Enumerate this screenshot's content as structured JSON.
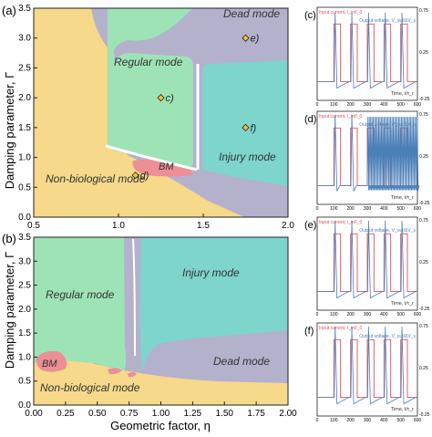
{
  "figure": {
    "panels": {
      "a": {
        "label": "(a)",
        "ylabel": "Damping parameter, Γ",
        "regions": [
          {
            "key": "dead",
            "label": "Dead mode",
            "color": "#b4b1cd"
          },
          {
            "key": "regular",
            "label": "Regular mode",
            "color": "#9ee3b6"
          },
          {
            "key": "injury",
            "label": "Injury mode",
            "color": "#7dd5cc"
          },
          {
            "key": "bm",
            "label": "BM",
            "color": "#ec8f96"
          },
          {
            "key": "nonbio",
            "label": "Non-biological mode",
            "color": "#f6d98a"
          }
        ],
        "points": [
          {
            "label": "e)",
            "eta": 1.75,
            "gamma": 3.0
          },
          {
            "label": "c)",
            "eta": 1.25,
            "gamma": 2.0
          },
          {
            "label": "f)",
            "eta": 1.75,
            "gamma": 1.5
          },
          {
            "label": "d)",
            "eta": 1.1,
            "gamma": 0.7
          }
        ],
        "xticks": [
          "0.5",
          "1.0",
          "1.5",
          "2.0"
        ],
        "yticks": [
          "0.0",
          "0.5",
          "1.0",
          "1.5",
          "2.0",
          "2.5",
          "3.0",
          "3.5"
        ]
      },
      "b": {
        "label": "(b)",
        "ylabel": "Damping parameter, Γ",
        "xlabel": "Geometric factor, η",
        "regions": [
          {
            "key": "regular",
            "label": "Regular mode",
            "color": "#9ee3b6"
          },
          {
            "key": "injury",
            "label": "Injury mode",
            "color": "#7dd5cc"
          },
          {
            "key": "dead",
            "label": "Dead mode",
            "color": "#b4b1cd"
          },
          {
            "key": "bm",
            "label": "BM",
            "color": "#ec8f96"
          },
          {
            "key": "nonbio",
            "label": "Non-biological mode",
            "color": "#f6d98a"
          }
        ],
        "xticks": [
          "0.00",
          "0.25",
          "0.50",
          "0.75",
          "1.00",
          "1.25",
          "1.50",
          "1.75",
          "2.00"
        ],
        "yticks": [
          "0.0",
          "0.5",
          "1.0",
          "1.5",
          "2.0",
          "2.5",
          "3.0",
          "3.5"
        ]
      }
    },
    "signal_panels": [
      {
        "label": "(c)",
        "input_legend": "Input current, I_in/I_0",
        "output_legend": "Output voltage, V_out/ΔV_s",
        "time_label": "Time, t/τ_r",
        "ytop": "0.75",
        "ymid": "0.25",
        "ybot": "-0.25",
        "pulses": [
          100,
          200,
          300,
          400,
          500
        ]
      },
      {
        "label": "(d)",
        "input_legend": "Input current, I_in/I_0",
        "output_legend": "Output voltage, V_out/ΔV_s",
        "time_label": "Time, t/τ_r",
        "ytop": "0.75",
        "ymid": "0.25",
        "ybot": "-0.25",
        "pulses": [
          100,
          200,
          300,
          400,
          500
        ]
      },
      {
        "label": "(e)",
        "input_legend": "Input current, I_in/I_0",
        "output_legend": "Output voltage, V_out/ΔV_s",
        "time_label": "Time, t/τ_r",
        "ytop": "0.75",
        "ymid": "0.25",
        "ybot": "-0.25",
        "pulses": [
          100,
          200,
          300,
          400,
          500
        ]
      },
      {
        "label": "(f)",
        "input_legend": "Input current, I_in/I_0",
        "output_legend": "Output voltage, V_out/ΔV_s",
        "time_label": "Time, t/τ_r",
        "ytop": "0.75",
        "ymid": "0.25",
        "ybot": "-0.25",
        "pulses": [
          100,
          200,
          300,
          400,
          500
        ]
      }
    ],
    "signal_xticks": [
      "0",
      "100",
      "200",
      "300",
      "400",
      "500",
      "600"
    ],
    "colors": {
      "input": "#e0505a",
      "output": "#4a7fb8"
    }
  },
  "chart_data": [
    {
      "type": "heatmap",
      "panel": "a",
      "title": "",
      "xlabel": "",
      "ylabel": "Damping parameter, Γ",
      "xlim": [
        0.5,
        2.0
      ],
      "ylim": [
        0.0,
        3.5
      ],
      "categories": [
        "Dead mode",
        "Regular mode",
        "Injury mode",
        "BM",
        "Non-biological mode"
      ],
      "points": [
        {
          "name": "e)",
          "x": 1.75,
          "y": 3.0
        },
        {
          "name": "c)",
          "x": 1.25,
          "y": 2.0
        },
        {
          "name": "f)",
          "x": 1.75,
          "y": 1.5
        },
        {
          "name": "d)",
          "x": 1.1,
          "y": 0.7
        }
      ]
    },
    {
      "type": "heatmap",
      "panel": "b",
      "title": "",
      "xlabel": "Geometric factor, η",
      "ylabel": "Damping parameter, Γ",
      "xlim": [
        0.0,
        2.0
      ],
      "ylim": [
        0.0,
        3.5
      ],
      "categories": [
        "Regular mode",
        "Injury mode",
        "Dead mode",
        "BM",
        "Non-biological mode"
      ]
    },
    {
      "type": "line",
      "panel": "c",
      "xlabel": "Time, t/τ_r",
      "xlim": [
        0,
        600
      ],
      "series": [
        {
          "name": "Input current, I_in/I_0",
          "pulse_starts": [
            100,
            200,
            300,
            400,
            500
          ]
        },
        {
          "name": "Output voltage, V_out/ΔV_s"
        }
      ]
    },
    {
      "type": "line",
      "panel": "d",
      "xlabel": "Time, t/τ_r",
      "xlim": [
        0,
        600
      ],
      "series": [
        {
          "name": "Input current, I_in/I_0",
          "pulse_starts": [
            100,
            200,
            300,
            400,
            500
          ]
        },
        {
          "name": "Output voltage, V_out/ΔV_s"
        }
      ]
    },
    {
      "type": "line",
      "panel": "e",
      "xlabel": "Time, t/τ_r",
      "xlim": [
        0,
        600
      ],
      "series": [
        {
          "name": "Input current, I_in/I_0",
          "pulse_starts": [
            100,
            200,
            300,
            400,
            500
          ]
        },
        {
          "name": "Output voltage, V_out/ΔV_s"
        }
      ]
    },
    {
      "type": "line",
      "panel": "f",
      "xlabel": "Time, t/τ_r",
      "xlim": [
        0,
        600
      ],
      "series": [
        {
          "name": "Input current, I_in/I_0",
          "pulse_starts": [
            100,
            200,
            300,
            400,
            500
          ]
        },
        {
          "name": "Output voltage, V_out/ΔV_s"
        }
      ]
    }
  ]
}
